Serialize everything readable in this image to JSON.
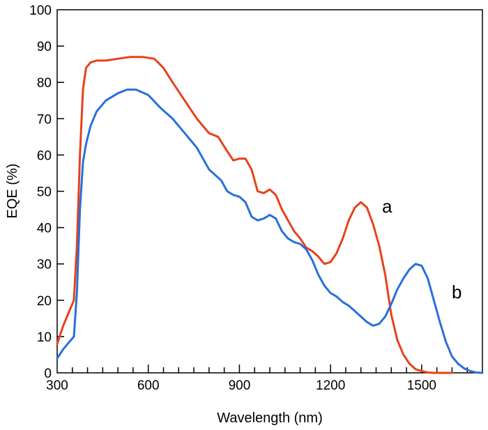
{
  "chart_data": {
    "type": "line",
    "title": "",
    "xlabel": "Wavelength (nm)",
    "ylabel": "EQE (%)",
    "xlim": [
      300,
      1700
    ],
    "ylim": [
      0,
      100
    ],
    "x_ticks": [
      300,
      600,
      900,
      1200,
      1500
    ],
    "x_minor_step": 50,
    "y_ticks": [
      0,
      10,
      20,
      30,
      40,
      50,
      60,
      70,
      80,
      90,
      100
    ],
    "grid": false,
    "series": [
      {
        "name": "a",
        "color": "#e8401c",
        "x": [
          300,
          320,
          340,
          355,
          365,
          375,
          385,
          395,
          410,
          430,
          460,
          500,
          540,
          580,
          620,
          650,
          680,
          720,
          760,
          800,
          830,
          860,
          880,
          900,
          920,
          940,
          960,
          980,
          1000,
          1020,
          1040,
          1060,
          1080,
          1100,
          1120,
          1140,
          1160,
          1180,
          1200,
          1220,
          1240,
          1260,
          1280,
          1300,
          1320,
          1340,
          1360,
          1380,
          1400,
          1420,
          1440,
          1460,
          1480,
          1500,
          1520,
          1540,
          1560,
          1580,
          1600
        ],
        "y": [
          8,
          13,
          17,
          20,
          35,
          60,
          78,
          84,
          85.5,
          86,
          86,
          86.5,
          87,
          87,
          86.5,
          84,
          80,
          75,
          70,
          66,
          65,
          61,
          58.5,
          59,
          59,
          56,
          50,
          49.5,
          50.5,
          49,
          45,
          42,
          39,
          37,
          34.5,
          33.5,
          32,
          30,
          30.5,
          33,
          37,
          42,
          45.5,
          47,
          45.5,
          41,
          35,
          27,
          16,
          9,
          5,
          2.5,
          1,
          0.5,
          0.1,
          0,
          0,
          0,
          0
        ]
      },
      {
        "name": "b",
        "color": "#2a6fdb",
        "x": [
          300,
          320,
          340,
          355,
          365,
          375,
          385,
          395,
          410,
          430,
          460,
          500,
          530,
          560,
          600,
          640,
          680,
          720,
          760,
          800,
          840,
          860,
          880,
          900,
          920,
          940,
          960,
          980,
          1000,
          1020,
          1040,
          1060,
          1080,
          1100,
          1120,
          1140,
          1160,
          1180,
          1200,
          1220,
          1240,
          1260,
          1280,
          1300,
          1320,
          1340,
          1360,
          1380,
          1400,
          1420,
          1440,
          1460,
          1480,
          1500,
          1520,
          1540,
          1560,
          1580,
          1600,
          1620,
          1640,
          1660,
          1680,
          1700
        ],
        "y": [
          4,
          6.5,
          8.5,
          10,
          22,
          45,
          58,
          63,
          68,
          72,
          75,
          77,
          78,
          78,
          76.5,
          73,
          70,
          66,
          62,
          56,
          53,
          50,
          49,
          48.5,
          47,
          43,
          42,
          42.5,
          43.5,
          42.5,
          39,
          37,
          36,
          35.5,
          34,
          31,
          27,
          24,
          22,
          21,
          19.5,
          18.5,
          17,
          15.5,
          14,
          13,
          13.5,
          15.5,
          19,
          23,
          26,
          28.5,
          30,
          29.5,
          26,
          20,
          14,
          8.5,
          4.5,
          2.5,
          1.2,
          0.5,
          0.1,
          0
        ]
      }
    ]
  }
}
